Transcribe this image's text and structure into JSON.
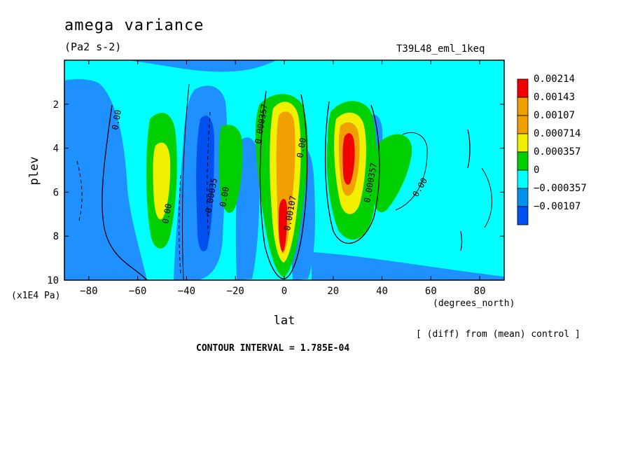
{
  "header": {
    "title": "amega variance",
    "units": "(Pa2 s-2)",
    "run": "T39L48_eml_1keq",
    "y_units": "(x1E4 Pa)",
    "x_units": "(degrees_north)",
    "diff_note": "[ (diff) from (mean) control ]",
    "contour_interval": "CONTOUR INTERVAL = 1.785E-04"
  },
  "chart_data": {
    "type": "heatmap",
    "title": "amega variance",
    "xlabel": "lat",
    "ylabel": "plev",
    "xlim": [
      -90,
      90
    ],
    "ylim": [
      10,
      0
    ],
    "x_ticks": [
      -80,
      -60,
      -40,
      -20,
      0,
      20,
      40,
      60,
      80
    ],
    "y_ticks": [
      2,
      4,
      6,
      8,
      10
    ],
    "legend": {
      "placement": "right",
      "levels": [
        "0.00214",
        "0.00143",
        "0.00107",
        "0.000714",
        "0.000357",
        "0",
        "-0.000357",
        "-0.00107"
      ],
      "colors": [
        "#f00000",
        "#f0a000",
        "#f0a000",
        "#f0f000",
        "#00d000",
        "#00ffff",
        "#0090f0",
        "#0050f0"
      ]
    },
    "colors": {
      "background": "#00ffff",
      "neg1": "#1e90ff",
      "neg2": "#0050f0",
      "pos1": "#00d000",
      "pos2": "#f0f000",
      "pos3": "#f0a000",
      "pos4": "#f00000"
    },
    "features": [
      {
        "lat": -50,
        "plev": 5.2,
        "peak": 0.000714,
        "label": "0.000357"
      },
      {
        "lat": -32,
        "plev": 5.8,
        "peak": -0.000357,
        "label": "-0.00035"
      },
      {
        "lat": -23,
        "plev": 4.0,
        "peak": 0.000357,
        "label": "0.00"
      },
      {
        "lat": -1,
        "plev": 5.5,
        "peak": 0.00214,
        "label": "0.00107"
      },
      {
        "lat": 24,
        "plev": 4.5,
        "peak": 0.00214,
        "label": "0.000357"
      },
      {
        "lat": 39,
        "plev": 5.0,
        "peak": 0.000357,
        "label": "0.00"
      }
    ],
    "contour_labels": [
      "0.00",
      "0.00",
      "-0.00035",
      "0.00",
      "0.000357",
      "0.00107",
      "0.00",
      "0.000357",
      "0.00"
    ]
  }
}
